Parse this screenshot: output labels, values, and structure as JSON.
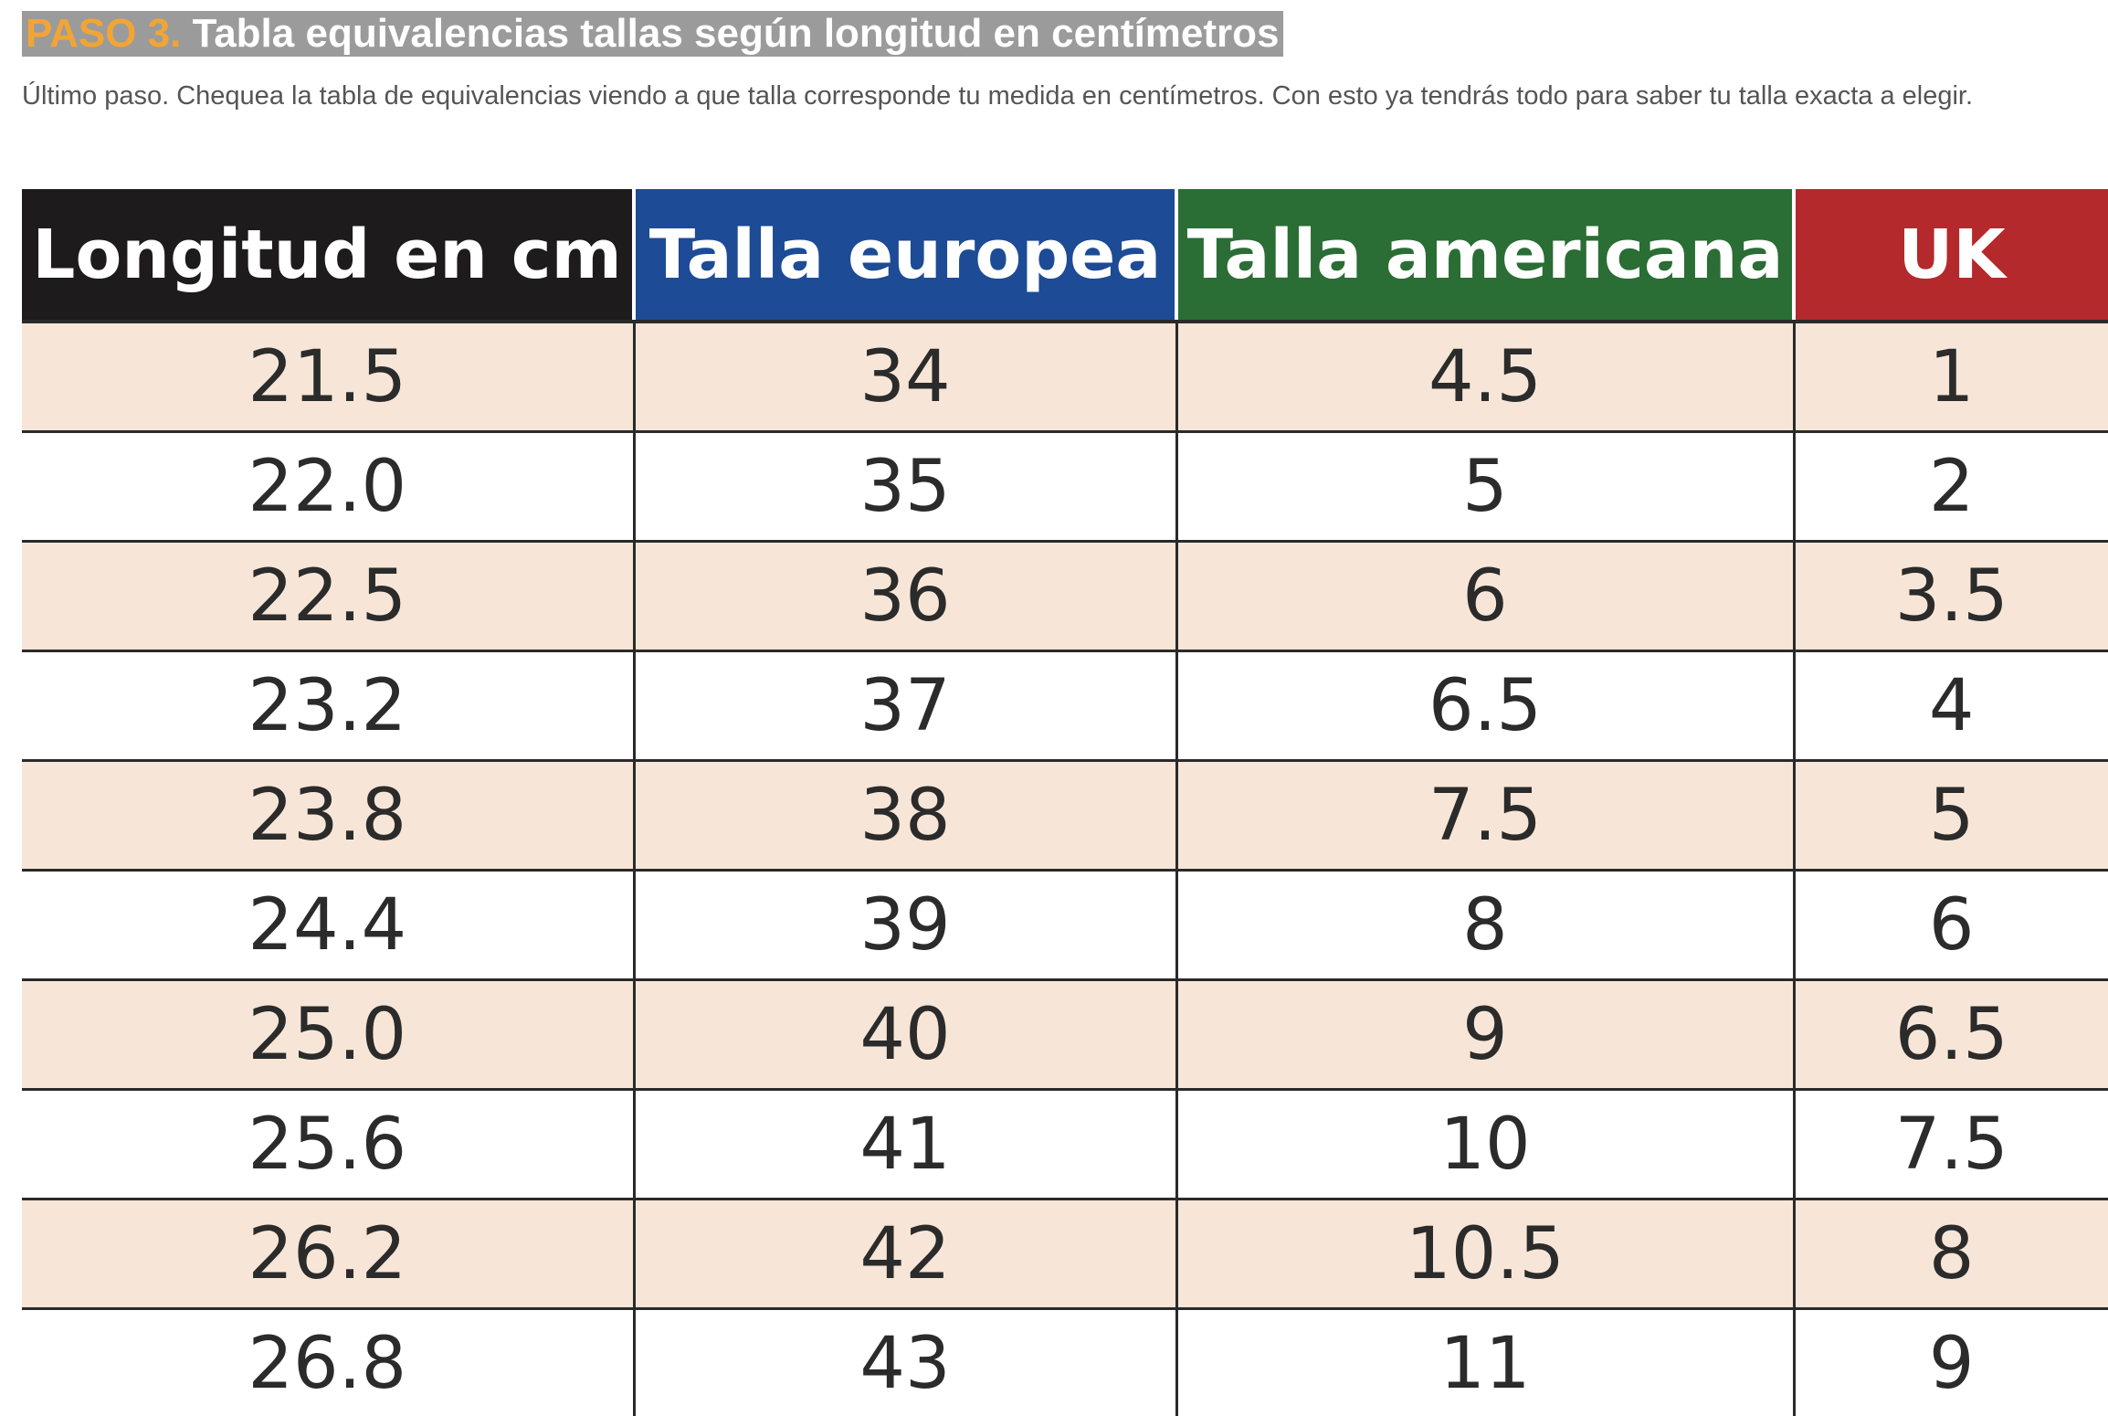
{
  "heading": {
    "step": "PASO 3.",
    "title": "Tabla equivalencias tallas según longitud en centímetros"
  },
  "intro": "Último paso. Chequea la tabla de equivalencias viendo a que talla corresponde tu medida en centímetros. Con esto ya tendrás todo para saber tu talla exacta a elegir.",
  "colors": {
    "step": "#f2a535",
    "heading_bg": "#9b9b9b",
    "col_length": "#1e1b1c",
    "col_eu": "#1d4b96",
    "col_us": "#2a6d35",
    "col_uk": "#b3292c",
    "row_shade": "#f7e6d7"
  },
  "table": {
    "headers": [
      "Longitud en cm",
      "Talla europea",
      "Talla americana",
      "UK"
    ],
    "rows": [
      [
        "21.5",
        "34",
        "4.5",
        "1"
      ],
      [
        "22.0",
        "35",
        "5",
        "2"
      ],
      [
        "22.5",
        "36",
        "6",
        "3.5"
      ],
      [
        "23.2",
        "37",
        "6.5",
        "4"
      ],
      [
        "23.8",
        "38",
        "7.5",
        "5"
      ],
      [
        "24.4",
        "39",
        "8",
        "6"
      ],
      [
        "25.0",
        "40",
        "9",
        "6.5"
      ],
      [
        "25.6",
        "41",
        "10",
        "7.5"
      ],
      [
        "26.2",
        "42",
        "10.5",
        "8"
      ],
      [
        "26.8",
        "43",
        "11",
        "9"
      ]
    ]
  }
}
